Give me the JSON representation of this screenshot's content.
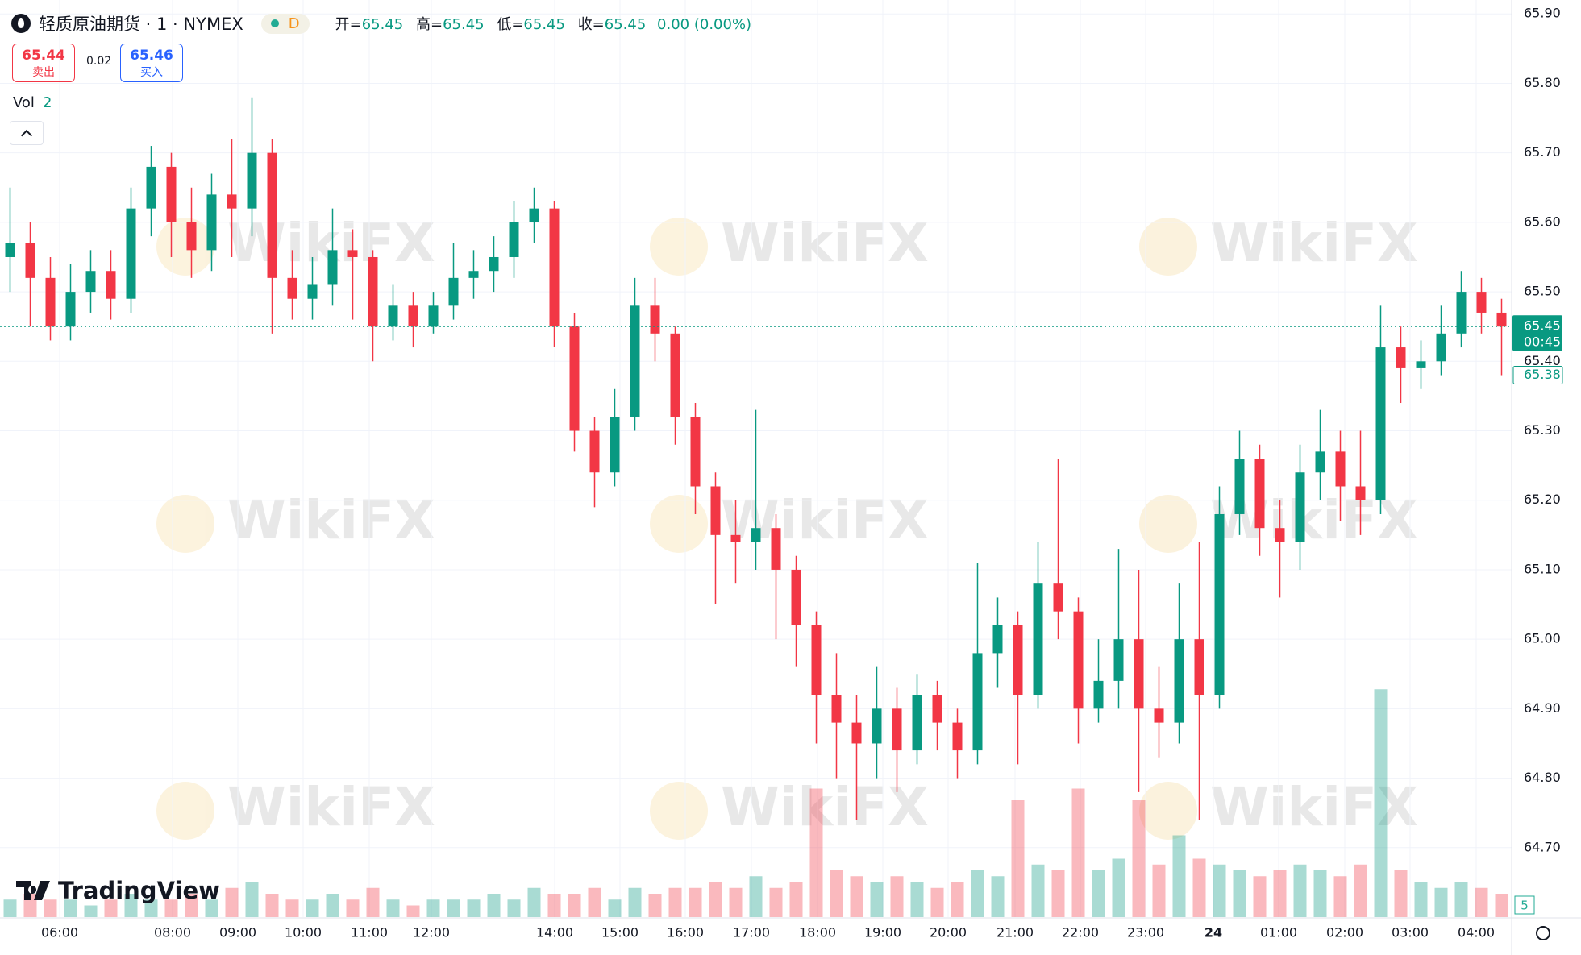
{
  "header": {
    "symbol": "轻质原油期货 · 1 · NYMEX",
    "interval_badge": "D",
    "ohlc": [
      {
        "label": "开=",
        "value": "65.45"
      },
      {
        "label": "高=",
        "value": "65.45"
      },
      {
        "label": "低=",
        "value": "65.45"
      },
      {
        "label": "收=",
        "value": "65.45"
      }
    ],
    "change": "0.00 (0.00%)"
  },
  "trade": {
    "sell_price": "65.44",
    "sell_label": "卖出",
    "spread": "0.02",
    "buy_price": "65.46",
    "buy_label": "买入"
  },
  "volume_indicator": {
    "label": "Vol",
    "value": "2"
  },
  "brand": "TradingView",
  "watermark": "WikiFX",
  "chart_data": {
    "type": "candlestick",
    "up_color": "#089981",
    "down_color": "#f23645",
    "grid": true,
    "xlim": [
      -0.5,
      74.5
    ],
    "ylim": [
      64.6,
      65.92
    ],
    "xticks": [
      {
        "value": 2.46,
        "label": "06:00"
      },
      {
        "value": 8.06,
        "label": "08:00"
      },
      {
        "value": 11.3,
        "label": "09:00"
      },
      {
        "value": 14.54,
        "label": "10:00"
      },
      {
        "value": 17.82,
        "label": "11:00"
      },
      {
        "value": 20.9,
        "label": "12:00"
      },
      {
        "value": 27.02,
        "label": "14:00"
      },
      {
        "value": 30.26,
        "label": "15:00"
      },
      {
        "value": 33.5,
        "label": "16:00"
      },
      {
        "value": 36.78,
        "label": "17:00"
      },
      {
        "value": 40.06,
        "label": "18:00"
      },
      {
        "value": 43.3,
        "label": "19:00"
      },
      {
        "value": 46.54,
        "label": "20:00"
      },
      {
        "value": 49.86,
        "label": "21:00"
      },
      {
        "value": 53.1,
        "label": "22:00"
      },
      {
        "value": 56.34,
        "label": "23:00"
      },
      {
        "value": 59.7,
        "label": "24"
      },
      {
        "value": 62.94,
        "label": "01:00"
      },
      {
        "value": 66.22,
        "label": "02:00"
      },
      {
        "value": 69.46,
        "label": "03:00"
      },
      {
        "value": 72.74,
        "label": "04:00"
      }
    ],
    "yticks": [
      {
        "value": 64.7,
        "label": "64.70"
      },
      {
        "value": 64.8,
        "label": "64.80"
      },
      {
        "value": 64.9,
        "label": "64.90"
      },
      {
        "value": 65.0,
        "label": "65.00"
      },
      {
        "value": 65.1,
        "label": "65.10"
      },
      {
        "value": 65.2,
        "label": "65.20"
      },
      {
        "value": 65.3,
        "label": "65.30"
      },
      {
        "value": 65.4,
        "label": "65.40"
      },
      {
        "value": 65.5,
        "label": "65.50"
      },
      {
        "value": 65.6,
        "label": "65.60"
      },
      {
        "value": 65.7,
        "label": "65.70"
      },
      {
        "value": 65.8,
        "label": "65.80"
      },
      {
        "value": 65.9,
        "label": "65.90"
      }
    ],
    "open": [
      65.55,
      65.57,
      65.52,
      65.45,
      65.5,
      65.53,
      65.49,
      65.62,
      65.68,
      65.6,
      65.56,
      65.64,
      65.62,
      65.7,
      65.52,
      65.49,
      65.51,
      65.56,
      65.55,
      65.45,
      65.48,
      65.45,
      65.48,
      65.52,
      65.53,
      65.55,
      65.6,
      65.62,
      65.45,
      65.3,
      65.24,
      65.32,
      65.48,
      65.44,
      65.32,
      65.22,
      65.15,
      65.14,
      65.16,
      65.1,
      65.02,
      64.92,
      64.88,
      64.85,
      64.9,
      64.84,
      64.92,
      64.88,
      64.84,
      64.98,
      65.02,
      64.92,
      65.08,
      65.04,
      64.9,
      64.94,
      65.0,
      64.9,
      64.88,
      65.0,
      64.92,
      65.18,
      65.26,
      65.16,
      65.14,
      65.24,
      65.27,
      65.22,
      65.2,
      65.42,
      65.39,
      65.4,
      65.44,
      65.5,
      65.47
    ],
    "high": [
      65.65,
      65.6,
      65.55,
      65.54,
      65.56,
      65.56,
      65.65,
      65.71,
      65.7,
      65.65,
      65.67,
      65.72,
      65.78,
      65.72,
      65.56,
      65.55,
      65.62,
      65.59,
      65.56,
      65.51,
      65.5,
      65.5,
      65.57,
      65.56,
      65.58,
      65.63,
      65.65,
      65.63,
      65.47,
      65.32,
      65.36,
      65.52,
      65.52,
      65.45,
      65.34,
      65.24,
      65.2,
      65.33,
      65.18,
      65.12,
      65.04,
      64.98,
      64.92,
      64.96,
      64.93,
      64.95,
      64.94,
      64.9,
      65.11,
      65.06,
      65.04,
      65.14,
      65.26,
      65.06,
      65.0,
      65.13,
      65.1,
      64.96,
      65.08,
      65.14,
      65.22,
      65.3,
      65.28,
      65.2,
      65.28,
      65.33,
      65.3,
      65.3,
      65.48,
      65.45,
      65.43,
      65.48,
      65.53,
      65.52,
      65.49
    ],
    "low": [
      65.5,
      65.45,
      65.43,
      65.43,
      65.47,
      65.46,
      65.47,
      65.58,
      65.55,
      65.52,
      65.53,
      65.55,
      65.58,
      65.44,
      65.46,
      65.46,
      65.48,
      65.46,
      65.4,
      65.43,
      65.42,
      65.44,
      65.46,
      65.49,
      65.5,
      65.52,
      65.57,
      65.42,
      65.27,
      65.19,
      65.22,
      65.3,
      65.4,
      65.28,
      65.18,
      65.05,
      65.08,
      65.1,
      65.0,
      64.96,
      64.85,
      64.8,
      64.74,
      64.8,
      64.78,
      64.82,
      64.84,
      64.8,
      64.82,
      64.93,
      64.82,
      64.9,
      65.0,
      64.85,
      64.88,
      64.9,
      64.78,
      64.83,
      64.85,
      64.74,
      64.9,
      65.15,
      65.12,
      65.06,
      65.1,
      65.2,
      65.17,
      65.15,
      65.18,
      65.34,
      65.36,
      65.38,
      65.42,
      65.44,
      65.38
    ],
    "close": [
      65.57,
      65.52,
      65.45,
      65.5,
      65.53,
      65.49,
      65.62,
      65.68,
      65.6,
      65.56,
      65.64,
      65.62,
      65.7,
      65.52,
      65.49,
      65.51,
      65.56,
      65.55,
      65.45,
      65.48,
      65.45,
      65.48,
      65.52,
      65.53,
      65.55,
      65.6,
      65.62,
      65.45,
      65.3,
      65.24,
      65.32,
      65.48,
      65.44,
      65.32,
      65.22,
      65.15,
      65.14,
      65.16,
      65.1,
      65.02,
      64.92,
      64.88,
      64.85,
      64.9,
      64.84,
      64.92,
      64.88,
      64.84,
      64.98,
      65.02,
      64.92,
      65.08,
      65.04,
      64.9,
      64.94,
      65.0,
      64.9,
      64.88,
      65.0,
      64.92,
      65.18,
      65.26,
      65.16,
      65.14,
      65.24,
      65.27,
      65.22,
      65.2,
      65.42,
      65.39,
      65.4,
      65.44,
      65.5,
      65.47,
      65.45
    ],
    "volume": [
      3,
      4,
      3,
      3,
      2,
      3,
      4,
      3,
      3,
      4,
      3,
      5,
      6,
      4,
      3,
      3,
      4,
      3,
      5,
      3,
      2,
      3,
      3,
      3,
      4,
      3,
      5,
      4,
      4,
      5,
      3,
      5,
      4,
      5,
      5,
      6,
      5,
      7,
      5,
      6,
      22,
      8,
      7,
      6,
      7,
      6,
      5,
      6,
      8,
      7,
      20,
      9,
      8,
      22,
      8,
      10,
      20,
      9,
      14,
      10,
      9,
      8,
      7,
      8,
      9,
      8,
      7,
      9,
      39,
      8,
      6,
      5,
      6,
      5,
      4
    ],
    "vlim": [
      0,
      40
    ],
    "volume_scale_label": "5",
    "price_tags": [
      {
        "value": 65.45,
        "label": "65.45",
        "countdown": "00:45"
      },
      {
        "value": 65.38,
        "label": "65.38"
      }
    ]
  }
}
